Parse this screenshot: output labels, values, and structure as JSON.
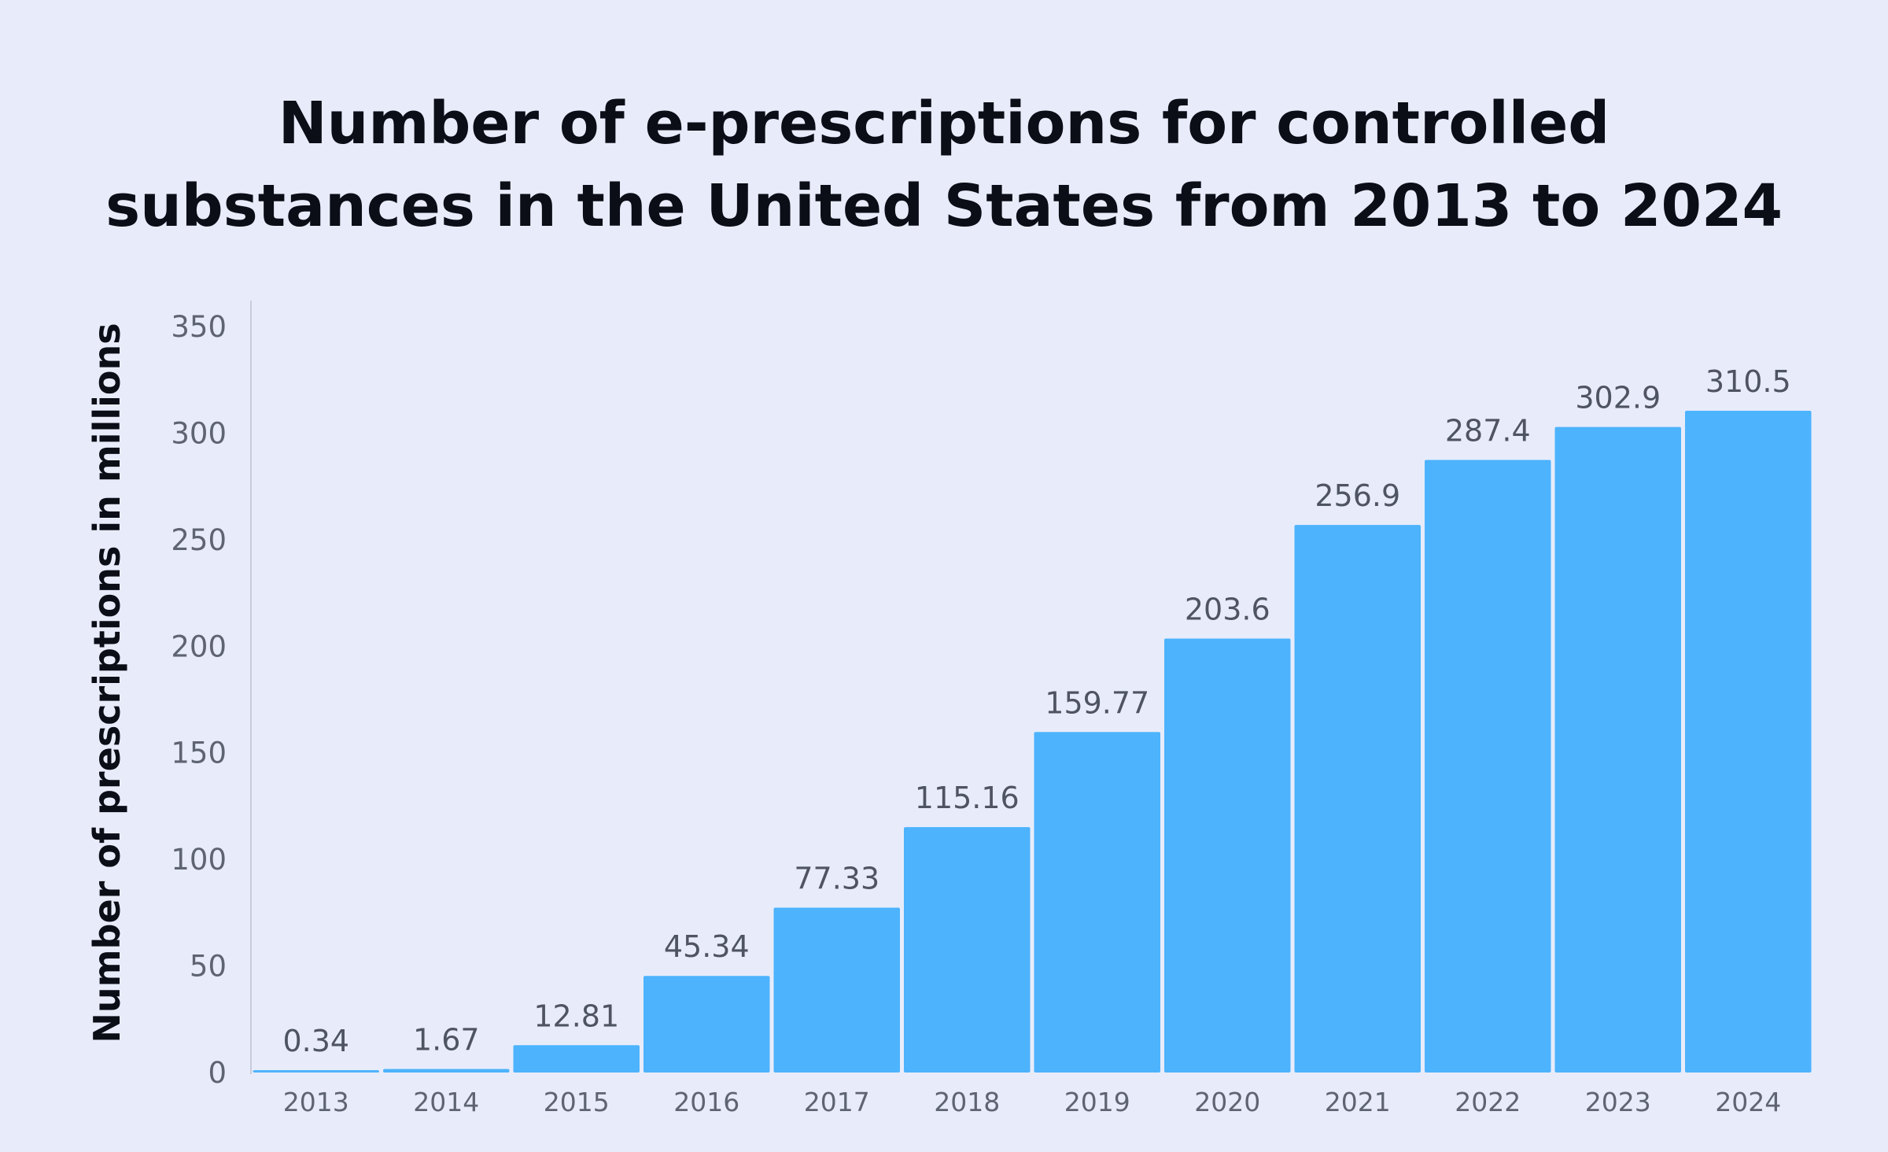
{
  "chart_data": {
    "type": "bar",
    "title": "Number of e-prescriptions for controlled substances in the United States from 2013 to 2024",
    "title_lines": [
      "Number of e-prescriptions for controlled",
      "substances in the United States from 2013 to 2024"
    ],
    "xlabel": "",
    "ylabel": "Number of prescriptions in millions",
    "categories": [
      "2013",
      "2014",
      "2015",
      "2016",
      "2017",
      "2018",
      "2019",
      "2020",
      "2021",
      "2022",
      "2023",
      "2024"
    ],
    "values": [
      0.34,
      1.67,
      12.81,
      45.34,
      77.33,
      115.16,
      159.77,
      203.6,
      256.9,
      287.4,
      302.9,
      310.5
    ],
    "value_labels": [
      "0.34",
      "1.67",
      "12.81",
      "45.34",
      "77.33",
      "115.16",
      "159.77",
      "203.6",
      "256.9",
      "287.4",
      "302.9",
      "310.5"
    ],
    "yticks": [
      0,
      50,
      100,
      150,
      200,
      250,
      300,
      350
    ],
    "ylim": [
      0,
      350
    ],
    "grid": false,
    "legend": "none",
    "bar_color": "#4db3fd",
    "background_color": "#e8ecfa"
  }
}
